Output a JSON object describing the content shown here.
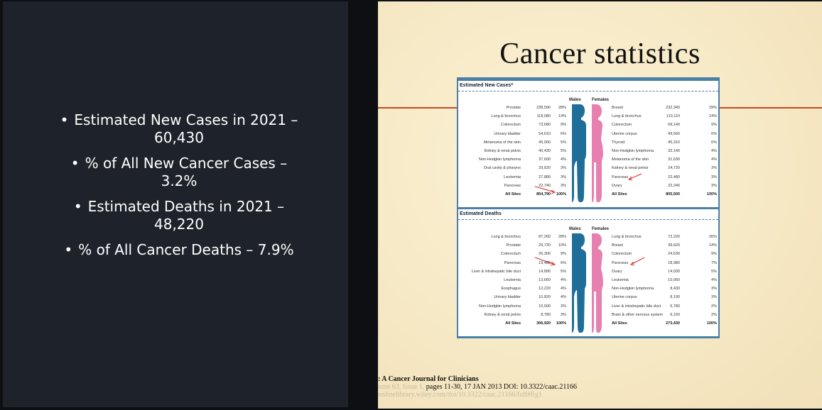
{
  "left": {
    "bullets": [
      {
        "line1": "Estimated New Cases in 2021 –",
        "line2": "60,430"
      },
      {
        "line1": "% of All New Cancer Cases –",
        "line2": "3.2%"
      },
      {
        "line1": "Estimated Deaths in 2021 –",
        "line2": "48,220"
      },
      {
        "line1": "% of All Cancer Deaths – 7.9%",
        "line2": ""
      }
    ]
  },
  "slide": {
    "title": "Cancer statistics",
    "new_cases": {
      "heading": "Estimated New Cases*",
      "males_label": "Males",
      "females_label": "Females",
      "males": [
        [
          "Prostate",
          "238,590",
          "28%"
        ],
        [
          "Lung & bronchus",
          "118,080",
          "14%"
        ],
        [
          "Colorectum",
          "73,680",
          "9%"
        ],
        [
          "Urinary bladder",
          "54,610",
          "6%"
        ],
        [
          "Melanoma of the skin",
          "45,060",
          "5%"
        ],
        [
          "Kidney & renal pelvis",
          "40,430",
          "5%"
        ],
        [
          "Non-Hodgkin lymphoma",
          "37,600",
          "4%"
        ],
        [
          "Oral cavity & pharynx",
          "29,620",
          "3%"
        ],
        [
          "Leukemia",
          "27,880",
          "3%"
        ],
        [
          "Pancreas",
          "22,740",
          "3%"
        ],
        [
          "All Sites",
          "854,790",
          "100%"
        ]
      ],
      "females": [
        [
          "Breast",
          "232,340",
          "29%"
        ],
        [
          "Lung & bronchus",
          "110,110",
          "14%"
        ],
        [
          "Colorectum",
          "69,140",
          "9%"
        ],
        [
          "Uterine corpus",
          "49,560",
          "6%"
        ],
        [
          "Thyroid",
          "45,310",
          "6%"
        ],
        [
          "Non-Hodgkin lymphoma",
          "32,140",
          "4%"
        ],
        [
          "Melanoma of the skin",
          "31,630",
          "4%"
        ],
        [
          "Kidney & renal pelvis",
          "24,720",
          "3%"
        ],
        [
          "Pancreas",
          "22,480",
          "3%"
        ],
        [
          "Ovary",
          "22,240",
          "3%"
        ],
        [
          "All Sites",
          "805,500",
          "100%"
        ]
      ]
    },
    "deaths": {
      "heading": "Estimated Deaths",
      "males_label": "Males",
      "females_label": "Females",
      "males": [
        [
          "Lung & bronchus",
          "87,260",
          "28%"
        ],
        [
          "Prostate",
          "29,720",
          "10%"
        ],
        [
          "Colorectum",
          "26,300",
          "9%"
        ],
        [
          "Pancreas",
          "19,480",
          "6%"
        ],
        [
          "Liver & intrahepatic bile duct",
          "14,890",
          "5%"
        ],
        [
          "Leukemia",
          "13,660",
          "4%"
        ],
        [
          "Esophagus",
          "12,220",
          "4%"
        ],
        [
          "Urinary bladder",
          "10,820",
          "4%"
        ],
        [
          "Non-Hodgkin lymphoma",
          "10,590",
          "3%"
        ],
        [
          "Kidney & renal pelvis",
          "8,780",
          "3%"
        ],
        [
          "All Sites",
          "306,920",
          "100%"
        ]
      ],
      "females": [
        [
          "Lung & bronchus",
          "72,220",
          "26%"
        ],
        [
          "Breast",
          "39,620",
          "14%"
        ],
        [
          "Colorectum",
          "24,530",
          "9%"
        ],
        [
          "Pancreas",
          "18,980",
          "7%"
        ],
        [
          "Ovary",
          "14,030",
          "5%"
        ],
        [
          "Leukemia",
          "10,060",
          "4%"
        ],
        [
          "Non-Hodgkin lymphoma",
          "8,430",
          "3%"
        ],
        [
          "Uterine corpus",
          "8,190",
          "3%"
        ],
        [
          "Liver & intrahepatic bile duct",
          "6,780",
          "2%"
        ],
        [
          "Brain & other nervous system",
          "6,150",
          "2%"
        ],
        [
          "All Sites",
          "273,430",
          "100%"
        ]
      ]
    },
    "citation": {
      "journal": ": A Cancer Journal for Clinicians",
      "line2_faint": "ume 63, Issue 1,",
      "line2": " pages 11-30, 17 JAN 2013 DOI: 10.3322/caac.21166",
      "line3": "onlinelibrary.wiley.com/doi/10.3322/caac.21166/full#fig1"
    },
    "colors": {
      "male": "#1f6e99",
      "female": "#e77fb0",
      "accent_red": "#c8471f",
      "arrow": "#d62a2a"
    }
  }
}
